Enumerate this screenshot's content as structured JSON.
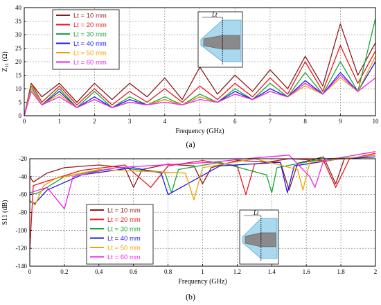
{
  "chart_data": [
    {
      "type": "line",
      "caption": "(a)",
      "xlabel": "Frequency (GHz)",
      "ylabel": "Z",
      "ylabel_sub": "11",
      "ylabel_unit": "(Ω)",
      "xlim": [
        0,
        10
      ],
      "ylim": [
        0,
        40
      ],
      "xticks": [
        0,
        1,
        2,
        3,
        4,
        5,
        6,
        7,
        8,
        9,
        10
      ],
      "yticks": [
        0,
        5,
        10,
        15,
        20,
        25,
        30,
        35,
        40
      ],
      "grid": true,
      "legend_position": "top-left",
      "inset_label": "Lt",
      "series": [
        {
          "name": "Lt = 10 mm",
          "color": "#8b1a1a",
          "x": [
            0,
            0.2,
            0.5,
            1,
            1.5,
            2,
            2.5,
            3,
            3.5,
            4,
            4.5,
            5,
            5.5,
            6,
            6.5,
            7,
            7.5,
            8,
            8.5,
            9,
            9.5,
            10
          ],
          "y": [
            0,
            12,
            7,
            12,
            5,
            12,
            6,
            12,
            7,
            14,
            6,
            18,
            8,
            15,
            9,
            17,
            10,
            22,
            11,
            34,
            15,
            27
          ]
        },
        {
          "name": "Lt = 20 mm",
          "color": "#e8161b",
          "x": [
            0,
            0.2,
            0.5,
            1,
            1.5,
            2,
            2.5,
            3,
            3.5,
            4,
            4.5,
            5,
            5.5,
            6,
            6.5,
            7,
            7.5,
            8,
            8.5,
            9,
            9.5,
            10
          ],
          "y": [
            0,
            12,
            5,
            11,
            4,
            10,
            4,
            9,
            5,
            10,
            5,
            11,
            6,
            12,
            7,
            14,
            8,
            20,
            9,
            26,
            12,
            24
          ]
        },
        {
          "name": "Lt = 30 mm",
          "color": "#11a833",
          "x": [
            0,
            0.2,
            0.5,
            1,
            1.5,
            2,
            2.5,
            3,
            3.5,
            4,
            4.5,
            5,
            5.5,
            6,
            6.5,
            7,
            7.5,
            8,
            8.5,
            9,
            9.5,
            10
          ],
          "y": [
            0,
            11,
            4,
            10,
            3,
            9,
            3,
            7,
            4,
            7,
            4,
            8,
            5,
            10,
            6,
            12,
            7,
            16,
            8,
            20,
            9,
            36
          ]
        },
        {
          "name": "Lt = 40 mm",
          "color": "#1a1aee",
          "x": [
            0,
            0.2,
            0.5,
            1,
            1.5,
            2,
            2.5,
            3,
            3.5,
            4,
            4.5,
            5,
            5.5,
            6,
            6.5,
            7,
            7.5,
            8,
            8.5,
            9,
            9.5,
            10
          ],
          "y": [
            0,
            10,
            4,
            9,
            3,
            7,
            3,
            6,
            4,
            6,
            4,
            7,
            5,
            9,
            6,
            10,
            7,
            13,
            8,
            16,
            9,
            20
          ]
        },
        {
          "name": "Lt = 50 mm",
          "color": "#f2a000",
          "x": [
            0,
            0.2,
            0.5,
            1,
            1.5,
            2,
            2.5,
            3,
            3.5,
            4,
            4.5,
            5,
            5.5,
            6,
            6.5,
            7,
            7.5,
            8,
            8.5,
            9,
            9.5,
            10
          ],
          "y": [
            0,
            10,
            4,
            8,
            3,
            6,
            3,
            5,
            4,
            6,
            4,
            7,
            5,
            8,
            6,
            9,
            7,
            11,
            8,
            14,
            9,
            22
          ]
        },
        {
          "name": "Lt = 60 mm",
          "color": "#ee22ee",
          "x": [
            0,
            0.2,
            0.5,
            1,
            1.5,
            2,
            2.5,
            3,
            3.5,
            4,
            4.5,
            5,
            5.5,
            6,
            6.5,
            7,
            7.5,
            8,
            8.5,
            9,
            9.5,
            10
          ],
          "y": [
            0,
            9,
            4,
            7,
            3,
            6,
            3,
            5,
            4,
            5,
            4,
            6,
            5,
            8,
            6,
            9,
            7,
            12,
            8,
            15,
            9,
            14
          ]
        }
      ]
    },
    {
      "type": "line",
      "caption": "(b)",
      "xlabel": "Frequency (GHz)",
      "ylabel": "S11 (dB)",
      "xlim": [
        0,
        2
      ],
      "ylim": [
        -140,
        -20
      ],
      "xticks": [
        0,
        0.2,
        0.4,
        0.6,
        0.8,
        1,
        1.2,
        1.4,
        1.6,
        1.8,
        2
      ],
      "yticks": [
        -140,
        -120,
        -100,
        -80,
        -60,
        -40,
        -20
      ],
      "grid": true,
      "legend_position": "bottom-left",
      "inset_label": "Lt",
      "series": [
        {
          "name": "Lt = 10 mm",
          "color": "#8b1a1a",
          "x": [
            0,
            0.02,
            0.1,
            0.2,
            0.4,
            0.55,
            0.6,
            0.65,
            0.8,
            0.95,
            1,
            1.05,
            1.2,
            1.45,
            1.5,
            1.55,
            1.7,
            1.77,
            1.82,
            2
          ],
          "y": [
            -40,
            -46,
            -36,
            -30,
            -27,
            -30,
            -52,
            -32,
            -26,
            -28,
            -48,
            -30,
            -22,
            -24,
            -55,
            -25,
            -18,
            -48,
            -20,
            -16
          ]
        },
        {
          "name": "Lt = 20 mm",
          "color": "#e8161b",
          "x": [
            0,
            0.02,
            0.1,
            0.3,
            0.55,
            0.7,
            0.8,
            1,
            1.2,
            1.25,
            1.3,
            1.5,
            1.7,
            1.77,
            1.85,
            2
          ],
          "y": [
            -122,
            -50,
            -45,
            -33,
            -27,
            -52,
            -28,
            -22,
            -28,
            -60,
            -26,
            -20,
            -22,
            -52,
            -20,
            -14
          ]
        },
        {
          "name": "Lt = 30 mm",
          "color": "#11a833",
          "x": [
            0,
            0.05,
            0.2,
            0.5,
            0.78,
            0.82,
            0.86,
            1.1,
            1.37,
            1.4,
            1.43,
            1.7,
            2
          ],
          "y": [
            -60,
            -58,
            -40,
            -30,
            -35,
            -58,
            -32,
            -24,
            -38,
            -58,
            -30,
            -20,
            -18
          ]
        },
        {
          "name": "Lt = 40 mm",
          "color": "#1a1aee",
          "x": [
            0,
            0.03,
            0.1,
            0.3,
            0.6,
            0.76,
            0.8,
            1.1,
            1.45,
            1.49,
            1.53,
            1.8,
            2
          ],
          "y": [
            -68,
            -70,
            -55,
            -38,
            -30,
            -36,
            -60,
            -28,
            -24,
            -58,
            -28,
            -20,
            -18
          ]
        },
        {
          "name": "Lt = 50 mm",
          "color": "#f2a000",
          "x": [
            0,
            0.03,
            0.08,
            0.15,
            0.4,
            0.9,
            0.95,
            1,
            1.3,
            1.55,
            1.58,
            1.62,
            2
          ],
          "y": [
            -66,
            -72,
            -50,
            -42,
            -32,
            -36,
            -66,
            -30,
            -20,
            -32,
            -55,
            -24,
            -16
          ]
        },
        {
          "name": "Lt = 60 mm",
          "color": "#ee22ee",
          "x": [
            0,
            0.1,
            0.2,
            0.25,
            0.5,
            0.85,
            1.05,
            1.25,
            1.5,
            1.62,
            1.65,
            1.7,
            2
          ],
          "y": [
            -58,
            -52,
            -76,
            -40,
            -30,
            -26,
            -24,
            -20,
            -16,
            -40,
            -52,
            -22,
            -12
          ]
        }
      ]
    }
  ]
}
